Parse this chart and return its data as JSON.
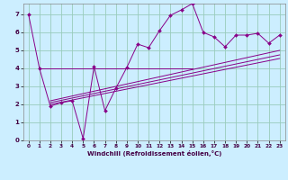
{
  "xlabel": "Windchill (Refroidissement éolien,°C)",
  "background_color": "#cceeff",
  "line_color": "#880088",
  "grid_color": "#99ccbb",
  "xlim": [
    -0.5,
    23.5
  ],
  "ylim": [
    0,
    7.6
  ],
  "xticks": [
    0,
    1,
    2,
    3,
    4,
    5,
    6,
    7,
    8,
    9,
    10,
    11,
    12,
    13,
    14,
    15,
    16,
    17,
    18,
    19,
    20,
    21,
    22,
    23
  ],
  "yticks": [
    0,
    1,
    2,
    3,
    4,
    5,
    6,
    7
  ],
  "main_x": [
    0,
    1,
    2,
    3,
    4,
    5,
    6,
    7,
    8,
    9,
    10,
    11,
    12,
    13,
    14,
    15,
    16,
    17,
    18,
    19,
    20,
    21,
    22,
    23
  ],
  "main_y": [
    7.0,
    4.0,
    1.9,
    2.1,
    2.2,
    0.1,
    4.1,
    1.65,
    2.9,
    4.05,
    5.35,
    5.15,
    6.1,
    6.95,
    7.25,
    7.6,
    6.0,
    5.75,
    5.2,
    5.85,
    5.85,
    5.95,
    5.4,
    5.85
  ],
  "line1_x": [
    2,
    23
  ],
  "line1_y": [
    2.0,
    4.55
  ],
  "line2_x": [
    2,
    23
  ],
  "line2_y": [
    2.1,
    4.75
  ],
  "line3_x": [
    2,
    23
  ],
  "line3_y": [
    2.2,
    5.0
  ],
  "hline_x": [
    1,
    15
  ],
  "hline_y": [
    4.0,
    4.0
  ]
}
